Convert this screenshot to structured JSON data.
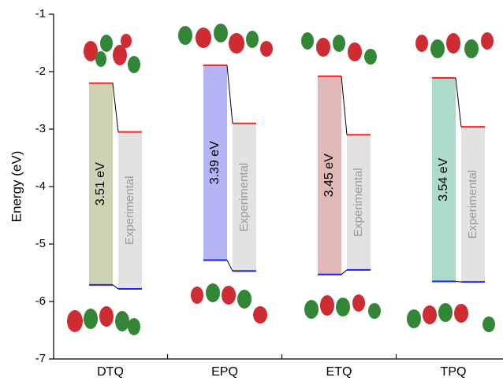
{
  "chart_data": {
    "type": "energy-level",
    "y_label": "Energy (eV)",
    "categories": [
      "DTQ",
      "EPQ",
      "ETQ",
      "TPQ"
    ],
    "colors": [
      "#cdd4b6",
      "#b4b4f6",
      "#e0b8b8",
      "#acdcc9"
    ],
    "lumo": [
      -2.2,
      -1.89,
      -2.08,
      -2.11
    ],
    "homo": [
      -5.71,
      -5.28,
      -5.53,
      -5.65
    ],
    "gaps": [
      3.51,
      3.39,
      3.45,
      3.54
    ],
    "value_labels": [
      "3.51 eV",
      "3.39 eV",
      "3.45 eV",
      "3.54 eV"
    ],
    "exp_label": "Experimental",
    "exp_color": "#e2e2e2",
    "exp_lumo": [
      -3.05,
      -2.9,
      -3.1,
      -2.96
    ],
    "exp_homo": [
      -5.78,
      -5.47,
      -5.45,
      -5.66
    ],
    "lumo_color": "#ff2020",
    "homo_color": "#2020ff",
    "ylim": [
      -7,
      -1
    ],
    "yticks": [
      -7,
      -6,
      -5,
      -4,
      -3,
      -2,
      -1
    ]
  }
}
